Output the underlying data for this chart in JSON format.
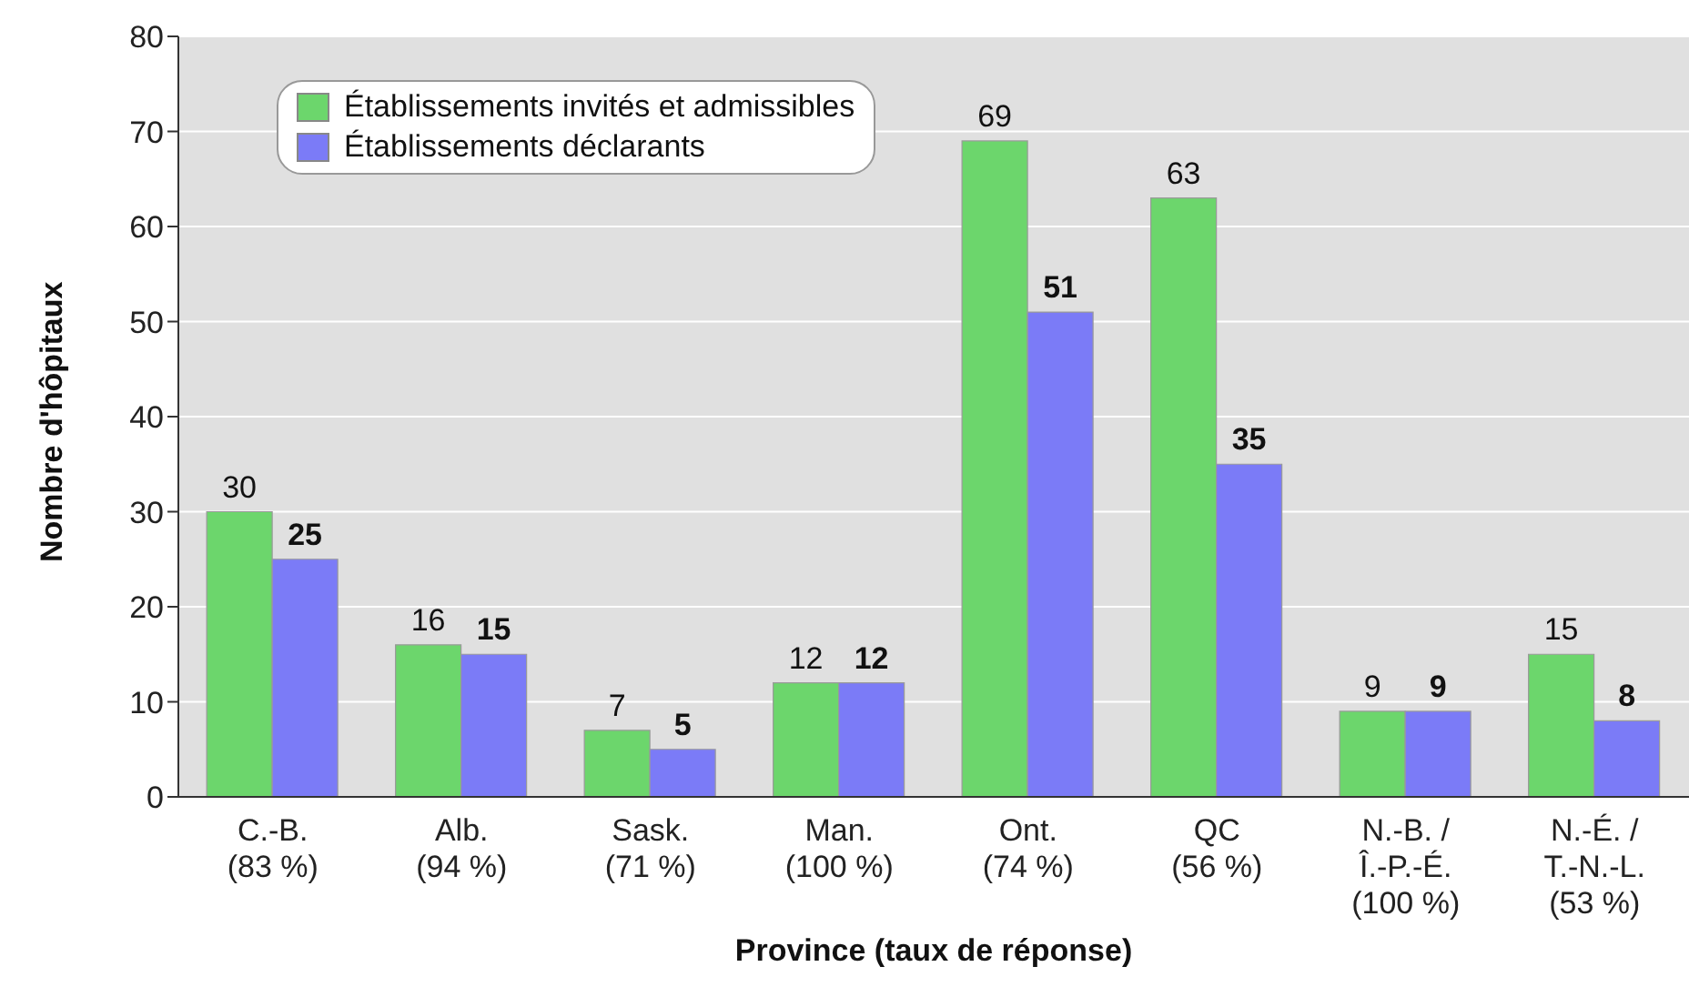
{
  "chart_data": {
    "type": "bar",
    "xlabel": "Province (taux de réponse)",
    "ylabel": "Nombre d'hôpitaux",
    "categories": [
      "C.-B.\n(83 %)",
      "Alb.\n(94 %)",
      "Sask.\n(71 %)",
      "Man.\n(100 %)",
      "Ont.\n(74 %)",
      "QC\n(56 %)",
      "N.-B. /\nÎ.-P.-É.\n(100 %)",
      "N.-É. /\nT.-N.-L.\n(53 %)"
    ],
    "series": [
      {
        "name": "Établissements invités et admissibles",
        "color": "#6cd66c",
        "values": [
          30,
          16,
          7,
          12,
          69,
          63,
          9,
          15
        ]
      },
      {
        "name": "Établissements déclarants",
        "color": "#7b7bf7",
        "values": [
          25,
          15,
          5,
          12,
          51,
          35,
          9,
          8
        ]
      }
    ],
    "ylim": [
      0,
      80
    ],
    "yticks": [
      0,
      10,
      20,
      30,
      40,
      50,
      60,
      70,
      80
    ],
    "grid": "y",
    "legend": "top left",
    "data_labels": true
  }
}
